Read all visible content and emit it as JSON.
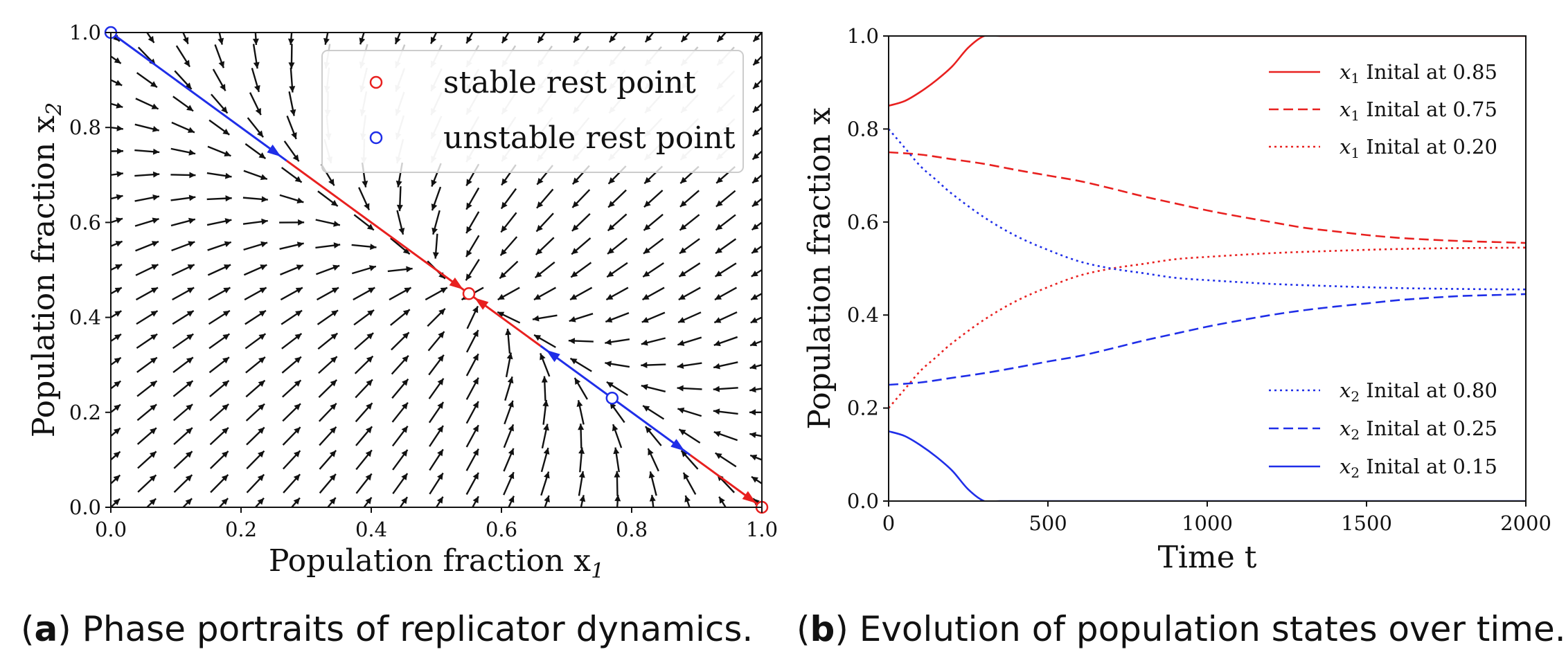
{
  "chart_data": [
    {
      "type": "quiver",
      "panel": "a",
      "xlabel": "Population fraction x",
      "xlabel_sub": "1",
      "ylabel": "Population fraction x",
      "ylabel_sub": "2",
      "xlim": [
        0.0,
        1.0
      ],
      "ylim": [
        0.0,
        1.0
      ],
      "xticks": [
        "0.0",
        "0.2",
        "0.4",
        "0.6",
        "0.8",
        "1.0"
      ],
      "yticks": [
        "0.0",
        "0.2",
        "0.4",
        "0.6",
        "0.8",
        "1.0"
      ],
      "legend": [
        {
          "label": "stable rest point",
          "color": "#e8201f",
          "marker": "circle"
        },
        {
          "label": "unstable rest point",
          "color": "#1f2ee8",
          "marker": "circle"
        }
      ],
      "rest_points": [
        {
          "x": 0.0,
          "y": 1.0,
          "type": "unstable"
        },
        {
          "x": 0.55,
          "y": 0.45,
          "type": "stable"
        },
        {
          "x": 0.77,
          "y": 0.23,
          "type": "unstable"
        },
        {
          "x": 1.0,
          "y": 0.0,
          "type": "stable"
        }
      ],
      "trajectories": [
        {
          "from": [
            0.0,
            1.0
          ],
          "to": [
            0.27,
            0.73
          ],
          "color": "#1f2ee8",
          "arrow_at": [
            0.27,
            0.73
          ]
        },
        {
          "from": [
            0.27,
            0.73
          ],
          "to": [
            0.55,
            0.45
          ],
          "color": "#e8201f",
          "arrow_at": [
            0.55,
            0.45
          ]
        },
        {
          "from": [
            0.66,
            0.34
          ],
          "to": [
            0.55,
            0.45
          ],
          "color": "#e8201f",
          "arrow_at": [
            0.55,
            0.45
          ]
        },
        {
          "from": [
            0.77,
            0.23
          ],
          "to": [
            0.66,
            0.34
          ],
          "color": "#1f2ee8",
          "arrow_at": [
            0.66,
            0.34
          ]
        },
        {
          "from": [
            0.77,
            0.23
          ],
          "to": [
            0.89,
            0.11
          ],
          "color": "#1f2ee8",
          "arrow_at": [
            0.89,
            0.11
          ]
        },
        {
          "from": [
            0.89,
            0.11
          ],
          "to": [
            1.0,
            0.0
          ],
          "color": "#e8201f",
          "arrow_at": [
            1.0,
            0.0
          ]
        }
      ],
      "field": {
        "rest_point_interior": [
          0.55,
          0.45
        ],
        "grid_x": [
          0.0,
          0.0556,
          0.1111,
          0.1667,
          0.2222,
          0.2778,
          0.3333,
          0.3889,
          0.4444,
          0.5,
          0.5556,
          0.6111,
          0.6667,
          0.7222,
          0.7778,
          0.8333,
          0.8889,
          0.9444,
          1.0
        ],
        "grid_y": [
          0.0,
          0.05,
          0.1,
          0.15,
          0.2,
          0.25,
          0.3,
          0.35,
          0.4,
          0.45,
          0.5,
          0.55,
          0.6,
          0.65,
          0.7,
          0.75,
          0.8,
          0.85,
          0.9,
          0.95,
          1.0
        ]
      }
    },
    {
      "type": "line",
      "panel": "b",
      "xlabel": "Time t",
      "ylabel": "Population fraction x",
      "xlim": [
        0,
        2000
      ],
      "ylim": [
        0.0,
        1.0
      ],
      "xticks": [
        "0",
        "500",
        "1000",
        "1500",
        "2000"
      ],
      "yticks": [
        "0.0",
        "0.2",
        "0.4",
        "0.6",
        "0.8",
        "1.0"
      ],
      "series": [
        {
          "name": "x1 Inital at 0.85",
          "var": "x",
          "sub": "1",
          "text": "Inital at 0.85",
          "color": "#e8201f",
          "dash": "solid",
          "x": [
            0,
            50,
            100,
            150,
            200,
            250,
            300,
            350,
            500,
            1000,
            1500,
            2000
          ],
          "y": [
            0.85,
            0.86,
            0.88,
            0.905,
            0.935,
            0.975,
            1.0,
            1.0,
            1.0,
            1.0,
            1.0,
            1.0
          ]
        },
        {
          "name": "x1 Inital at 0.75",
          "var": "x",
          "sub": "1",
          "text": "Inital at 0.75",
          "color": "#e8201f",
          "dash": "dashed",
          "x": [
            0,
            100,
            200,
            300,
            400,
            500,
            600,
            700,
            800,
            900,
            1000,
            1100,
            1200,
            1300,
            1400,
            1500,
            1600,
            1700,
            1800,
            1900,
            2000
          ],
          "y": [
            0.75,
            0.745,
            0.735,
            0.725,
            0.712,
            0.7,
            0.688,
            0.672,
            0.655,
            0.64,
            0.625,
            0.612,
            0.6,
            0.588,
            0.58,
            0.572,
            0.566,
            0.562,
            0.559,
            0.557,
            0.555
          ]
        },
        {
          "name": "x1 Inital at 0.20",
          "var": "x",
          "sub": "1",
          "text": "Inital at 0.20",
          "color": "#e8201f",
          "dash": "dotted",
          "x": [
            0,
            50,
            100,
            150,
            200,
            300,
            400,
            500,
            600,
            700,
            800,
            900,
            1000,
            1200,
            1400,
            1600,
            1800,
            2000
          ],
          "y": [
            0.2,
            0.24,
            0.28,
            0.31,
            0.34,
            0.39,
            0.43,
            0.46,
            0.485,
            0.5,
            0.51,
            0.52,
            0.525,
            0.533,
            0.538,
            0.542,
            0.544,
            0.545
          ]
        },
        {
          "name": "x2 Inital at 0.80",
          "var": "x",
          "sub": "2",
          "text": "Inital at 0.80",
          "color": "#1f2ee8",
          "dash": "dotted",
          "x": [
            0,
            50,
            100,
            150,
            200,
            300,
            400,
            500,
            600,
            700,
            800,
            900,
            1000,
            1200,
            1400,
            1600,
            1800,
            2000
          ],
          "y": [
            0.8,
            0.76,
            0.72,
            0.69,
            0.66,
            0.61,
            0.57,
            0.54,
            0.515,
            0.5,
            0.49,
            0.48,
            0.475,
            0.467,
            0.462,
            0.458,
            0.456,
            0.455
          ]
        },
        {
          "name": "x2 Inital at 0.25",
          "var": "x",
          "sub": "2",
          "text": "Inital at 0.25",
          "color": "#1f2ee8",
          "dash": "dashed",
          "x": [
            0,
            100,
            200,
            300,
            400,
            500,
            600,
            700,
            800,
            900,
            1000,
            1100,
            1200,
            1300,
            1400,
            1500,
            1600,
            1700,
            1800,
            1900,
            2000
          ],
          "y": [
            0.25,
            0.255,
            0.265,
            0.275,
            0.287,
            0.3,
            0.312,
            0.328,
            0.345,
            0.36,
            0.375,
            0.388,
            0.4,
            0.41,
            0.418,
            0.425,
            0.432,
            0.437,
            0.441,
            0.443,
            0.445
          ]
        },
        {
          "name": "x2 Inital at 0.15",
          "var": "x",
          "sub": "2",
          "text": "Inital at 0.15",
          "color": "#1f2ee8",
          "dash": "solid",
          "x": [
            0,
            50,
            100,
            150,
            200,
            250,
            300,
            350,
            500,
            1000,
            1500,
            2000
          ],
          "y": [
            0.15,
            0.14,
            0.12,
            0.095,
            0.065,
            0.025,
            0.0,
            0.0,
            0.0,
            0.0,
            0.0,
            0.0
          ]
        }
      ]
    }
  ],
  "captions": {
    "a": {
      "label": "a",
      "text": "Phase portraits of replicator dynamics."
    },
    "b": {
      "label": "b",
      "text": "Evolution of population states over time."
    }
  }
}
